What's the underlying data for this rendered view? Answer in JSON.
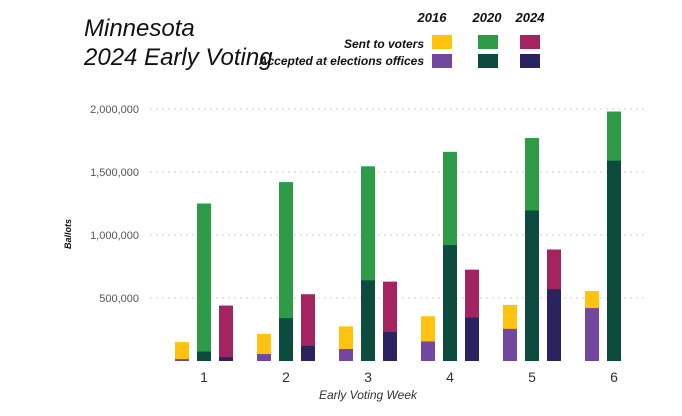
{
  "title_line1": "Minnesota",
  "title_line2": "2024 Early Voting",
  "legend": {
    "years": [
      "2016",
      "2020",
      "2024"
    ],
    "rows": [
      "Sent to voters",
      "Accepted at elections offices"
    ]
  },
  "colors": {
    "sent_2016": "#FFC20E",
    "sent_2020": "#2D9B47",
    "sent_2024": "#A3245F",
    "acc_2016": "#7247A0",
    "acc_2020": "#0D4B3E",
    "acc_2024": "#2A2360"
  },
  "chart_data": {
    "type": "bar",
    "title": "Minnesota 2024 Early Voting",
    "xlabel": "Early Voting Week",
    "ylabel": "Ballots",
    "ylim": [
      0,
      2000000
    ],
    "yticks": [
      500000,
      1000000,
      1500000,
      2000000
    ],
    "ytick_labels": [
      "500,000",
      "1,000,000",
      "1,500,000",
      "2,000,000"
    ],
    "categories": [
      "1",
      "2",
      "3",
      "4",
      "5",
      "6"
    ],
    "series": [
      {
        "name": "2016 Sent to voters",
        "year": "2016",
        "kind": "sent",
        "values": [
          150000,
          215000,
          275000,
          355000,
          445000,
          555000
        ]
      },
      {
        "name": "2016 Accepted at elections offices",
        "year": "2016",
        "kind": "accepted",
        "values": [
          15000,
          55000,
          95000,
          155000,
          255000,
          420000
        ]
      },
      {
        "name": "2020 Sent to voters",
        "year": "2020",
        "kind": "sent",
        "values": [
          1250000,
          1420000,
          1545000,
          1660000,
          1770000,
          1980000
        ]
      },
      {
        "name": "2020 Accepted at elections offices",
        "year": "2020",
        "kind": "accepted",
        "values": [
          75000,
          340000,
          640000,
          920000,
          1195000,
          1590000
        ]
      },
      {
        "name": "2024 Sent to voters",
        "year": "2024",
        "kind": "sent",
        "values": [
          440000,
          530000,
          630000,
          725000,
          885000,
          null
        ]
      },
      {
        "name": "2024 Accepted at elections offices",
        "year": "2024",
        "kind": "accepted",
        "values": [
          30000,
          120000,
          230000,
          345000,
          570000,
          null
        ]
      }
    ]
  }
}
